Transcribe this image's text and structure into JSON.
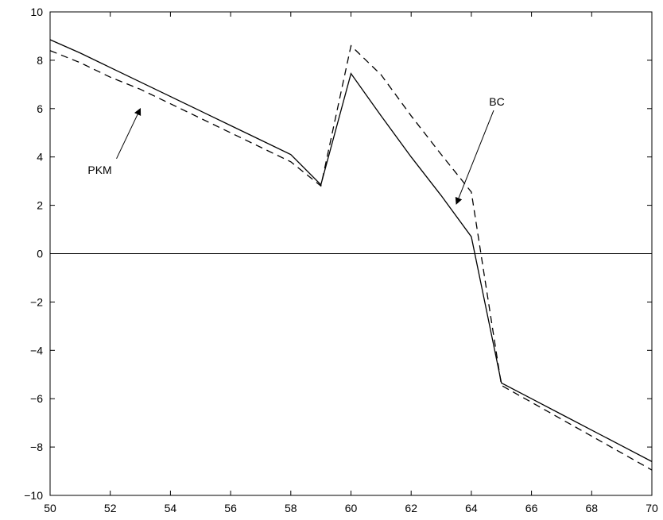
{
  "chart_data": {
    "type": "line",
    "title": "",
    "xlabel": "",
    "ylabel": "",
    "xlim": [
      50,
      70
    ],
    "ylim": [
      -10,
      10
    ],
    "xticks": [
      50,
      52,
      54,
      56,
      58,
      60,
      62,
      64,
      66,
      68,
      70
    ],
    "yticks": [
      -10,
      -8,
      -6,
      -4,
      -2,
      0,
      2,
      4,
      6,
      8,
      10
    ],
    "grid": false,
    "series": [
      {
        "style": "solid",
        "x": [
          50,
          51,
          52,
          53,
          54,
          55,
          56,
          57,
          58,
          59,
          60,
          61,
          62,
          63,
          64,
          65,
          66,
          67,
          68,
          69,
          70
        ],
        "values": [
          8.85,
          8.3,
          7.7,
          7.1,
          6.5,
          5.9,
          5.3,
          4.7,
          4.1,
          2.85,
          7.45,
          5.7,
          4.0,
          2.4,
          0.7,
          -5.35,
          -6.0,
          -6.65,
          -7.3,
          -7.95,
          -8.6
        ]
      },
      {
        "style": "dashed",
        "x": [
          50,
          51,
          52,
          53,
          54,
          55,
          56,
          57,
          58,
          59,
          60,
          61,
          62,
          63,
          64,
          65,
          66,
          67,
          68,
          69,
          70
        ],
        "values": [
          8.4,
          7.9,
          7.3,
          6.8,
          6.2,
          5.6,
          5.0,
          4.4,
          3.8,
          2.8,
          8.6,
          7.4,
          5.7,
          4.1,
          2.55,
          -5.45,
          -6.15,
          -6.85,
          -7.55,
          -8.25,
          -8.95
        ]
      }
    ],
    "reference_line": {
      "y": 0
    },
    "annotations": [
      {
        "text": "PKM",
        "target": [
          53,
          6.0
        ]
      },
      {
        "text": "BC",
        "target": [
          63.5,
          2.05
        ]
      }
    ]
  }
}
